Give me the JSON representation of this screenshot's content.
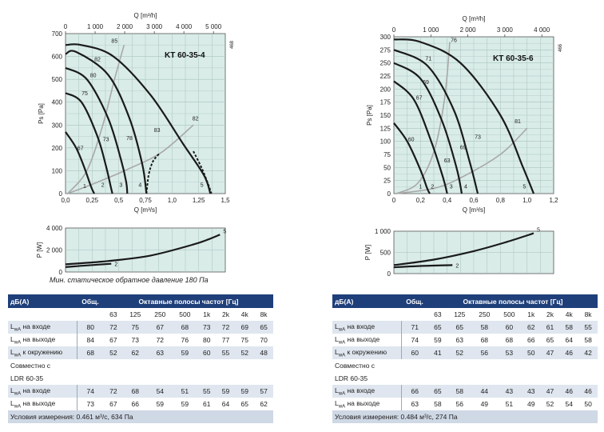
{
  "chart_data": [
    {
      "type": "line",
      "id": "left_main",
      "title": "KT 60-35-4",
      "side_label": "468",
      "xlabel": "Q [m³/s]",
      "x2label": "Q [m³/h]",
      "ylabel": "Ps [Pa]",
      "xlim": [
        0,
        1.5
      ],
      "ylim": [
        0,
        700
      ],
      "x2lim": [
        0,
        5400
      ],
      "xticks": [
        "0,0",
        "0,25",
        "0,5",
        "0,75",
        "1,0",
        "1,25",
        "1,5"
      ],
      "yticks": [
        "0",
        "100",
        "200",
        "300",
        "400",
        "500",
        "600",
        "700"
      ],
      "x2ticks": [
        "0",
        "1 000",
        "2 000",
        "3 000",
        "4 000",
        "5 000"
      ],
      "grid": true,
      "series": [
        {
          "name": "1",
          "points": [
            [
              0.0,
              270
            ],
            [
              0.1,
              200
            ],
            [
              0.18,
              110
            ],
            [
              0.24,
              30
            ],
            [
              0.27,
              0
            ]
          ]
        },
        {
          "name": "2",
          "points": [
            [
              0.0,
              440
            ],
            [
              0.15,
              400
            ],
            [
              0.3,
              250
            ],
            [
              0.38,
              120
            ],
            [
              0.42,
              40
            ],
            [
              0.44,
              0
            ]
          ]
        },
        {
          "name": "3",
          "points": [
            [
              0.0,
              550
            ],
            [
              0.2,
              500
            ],
            [
              0.4,
              330
            ],
            [
              0.52,
              150
            ],
            [
              0.57,
              50
            ],
            [
              0.58,
              0
            ]
          ]
        },
        {
          "name": "4",
          "points": [
            [
              0.0,
              610
            ],
            [
              0.1,
              620
            ],
            [
              0.4,
              520
            ],
            [
              0.6,
              330
            ],
            [
              0.72,
              130
            ],
            [
              0.76,
              0
            ]
          ]
        },
        {
          "name": "5",
          "points": [
            [
              0.0,
              650
            ],
            [
              0.15,
              650
            ],
            [
              0.45,
              600
            ],
            [
              0.8,
              430
            ],
            [
              1.1,
              220
            ],
            [
              1.3,
              80
            ],
            [
              1.36,
              0
            ]
          ]
        }
      ],
      "dashed_tails": [
        {
          "name": "4",
          "points": [
            [
              0.76,
              0
            ],
            [
              0.78,
              80
            ],
            [
              0.82,
              140
            ],
            [
              0.88,
              175
            ]
          ]
        },
        {
          "name": "5",
          "points": [
            [
              1.2,
              185
            ],
            [
              1.28,
              110
            ],
            [
              1.34,
              40
            ],
            [
              1.37,
              0
            ]
          ]
        }
      ],
      "efficiency_curves": [
        {
          "points": [
            [
              0.02,
              0
            ],
            [
              0.2,
              100
            ],
            [
              0.35,
              300
            ],
            [
              0.46,
              500
            ],
            [
              0.55,
              650
            ]
          ]
        },
        {
          "points": [
            [
              0.02,
              0
            ],
            [
              0.3,
              50
            ],
            [
              0.6,
              110
            ],
            [
              0.9,
              180
            ],
            [
              1.2,
              300
            ]
          ]
        }
      ],
      "labels": [
        {
          "text": "85",
          "x": 0.46,
          "y": 660
        },
        {
          "text": "82",
          "x": 0.3,
          "y": 580
        },
        {
          "text": "80",
          "x": 0.26,
          "y": 510
        },
        {
          "text": "75",
          "x": 0.18,
          "y": 430
        },
        {
          "text": "83",
          "x": 0.86,
          "y": 270
        },
        {
          "text": "82",
          "x": 1.22,
          "y": 320
        },
        {
          "text": "78",
          "x": 0.6,
          "y": 235
        },
        {
          "text": "73",
          "x": 0.38,
          "y": 230
        },
        {
          "text": "67",
          "x": 0.14,
          "y": 190
        },
        {
          "text": "1",
          "x": 0.18,
          "y": 25
        },
        {
          "text": "2",
          "x": 0.35,
          "y": 30
        },
        {
          "text": "3",
          "x": 0.52,
          "y": 30
        },
        {
          "text": "4",
          "x": 0.7,
          "y": 30
        },
        {
          "text": "5",
          "x": 1.28,
          "y": 30
        }
      ]
    },
    {
      "type": "line",
      "id": "left_power",
      "ylabel": "P [W]",
      "xlim": [
        0,
        1.5
      ],
      "ylim": [
        0,
        4000
      ],
      "yticks": [
        "0",
        "2 000",
        "4 000"
      ],
      "grid": true,
      "series": [
        {
          "name": "2",
          "points": [
            [
              0.0,
              450
            ],
            [
              0.2,
              600
            ],
            [
              0.43,
              750
            ]
          ]
        },
        {
          "name": "5",
          "points": [
            [
              0.0,
              700
            ],
            [
              0.4,
              1000
            ],
            [
              0.8,
              1500
            ],
            [
              1.2,
              2500
            ],
            [
              1.35,
              3000
            ],
            [
              1.45,
              3400
            ]
          ]
        }
      ]
    },
    {
      "type": "line",
      "id": "right_main",
      "title": "KT 60-35-6",
      "side_label": "466",
      "xlabel": "Q [m³/s]",
      "x2label": "Q [m³/h]",
      "ylabel": "Ps [Pa]",
      "xlim": [
        0,
        1.2
      ],
      "ylim": [
        0,
        300
      ],
      "x2lim": [
        0,
        4320
      ],
      "xticks": [
        "0",
        "0,2",
        "0,4",
        "0,6",
        "0,8",
        "1,0",
        "1,2"
      ],
      "yticks": [
        "0",
        "25",
        "50",
        "75",
        "100",
        "125",
        "150",
        "175",
        "200",
        "225",
        "250",
        "275",
        "300"
      ],
      "x2ticks": [
        "0",
        "1 000",
        "2 000",
        "3 000",
        "4 000"
      ],
      "grid": true,
      "series": [
        {
          "name": "1",
          "points": [
            [
              0.0,
              135
            ],
            [
              0.1,
              100
            ],
            [
              0.2,
              45
            ],
            [
              0.25,
              10
            ],
            [
              0.27,
              0
            ]
          ]
        },
        {
          "name": "2",
          "points": [
            [
              0.0,
              215
            ],
            [
              0.15,
              180
            ],
            [
              0.28,
              100
            ],
            [
              0.37,
              30
            ],
            [
              0.4,
              0
            ]
          ]
        },
        {
          "name": "3",
          "points": [
            [
              0.0,
              250
            ],
            [
              0.2,
              220
            ],
            [
              0.36,
              140
            ],
            [
              0.47,
              50
            ],
            [
              0.51,
              0
            ]
          ]
        },
        {
          "name": "4",
          "points": [
            [
              0.0,
              275
            ],
            [
              0.25,
              245
            ],
            [
              0.45,
              160
            ],
            [
              0.57,
              60
            ],
            [
              0.63,
              0
            ]
          ]
        },
        {
          "name": "5",
          "points": [
            [
              0.0,
              295
            ],
            [
              0.2,
              290
            ],
            [
              0.5,
              250
            ],
            [
              0.8,
              150
            ],
            [
              0.97,
              50
            ],
            [
              1.05,
              0
            ]
          ]
        }
      ],
      "efficiency_curves": [
        {
          "points": [
            [
              0.02,
              0
            ],
            [
              0.18,
              20
            ],
            [
              0.3,
              80
            ],
            [
              0.38,
              180
            ],
            [
              0.42,
              290
            ]
          ]
        },
        {
          "points": [
            [
              0.02,
              0
            ],
            [
              0.3,
              10
            ],
            [
              0.5,
              30
            ],
            [
              0.8,
              75
            ],
            [
              1.0,
              125
            ]
          ]
        }
      ],
      "labels": [
        {
          "text": "76",
          "x": 0.45,
          "y": 290
        },
        {
          "text": "71",
          "x": 0.26,
          "y": 255
        },
        {
          "text": "69",
          "x": 0.24,
          "y": 210
        },
        {
          "text": "67",
          "x": 0.19,
          "y": 180
        },
        {
          "text": "60",
          "x": 0.13,
          "y": 100
        },
        {
          "text": "63",
          "x": 0.4,
          "y": 60
        },
        {
          "text": "69",
          "x": 0.52,
          "y": 85
        },
        {
          "text": "73",
          "x": 0.63,
          "y": 105
        },
        {
          "text": "81",
          "x": 0.93,
          "y": 135
        },
        {
          "text": "1",
          "x": 0.2,
          "y": 10
        },
        {
          "text": "2",
          "x": 0.29,
          "y": 10
        },
        {
          "text": "3",
          "x": 0.43,
          "y": 10
        },
        {
          "text": "4",
          "x": 0.54,
          "y": 10
        },
        {
          "text": "5",
          "x": 0.98,
          "y": 10
        }
      ]
    },
    {
      "type": "line",
      "id": "right_power",
      "ylabel": "P [W]",
      "xlim": [
        0,
        1.2
      ],
      "ylim": [
        0,
        1000
      ],
      "yticks": [
        "0",
        "500",
        "1 000"
      ],
      "grid": true,
      "series": [
        {
          "name": "2",
          "points": [
            [
              0.0,
              150
            ],
            [
              0.2,
              180
            ],
            [
              0.44,
              200
            ]
          ]
        },
        {
          "name": "5",
          "points": [
            [
              0.0,
              200
            ],
            [
              0.3,
              330
            ],
            [
              0.6,
              530
            ],
            [
              0.85,
              750
            ],
            [
              1.05,
              950
            ]
          ]
        }
      ]
    }
  ],
  "note_left": "Мин. статическое обратное давление 180 Па",
  "tables": {
    "left": {
      "hdr_db": "дБ(А)",
      "hdr_total": "Общ.",
      "hdr_bands": "Октавные полосы частот [Гц]",
      "freqs": [
        "63",
        "125",
        "250",
        "500",
        "1k",
        "2k",
        "4k",
        "8k"
      ],
      "rows": [
        {
          "l": "L",
          "sub": "wA",
          "rest": " на входе",
          "total": "80",
          "vals": [
            "72",
            "75",
            "67",
            "68",
            "73",
            "72",
            "69",
            "65"
          ]
        },
        {
          "l": "L",
          "sub": "wA",
          "rest": " на выходе",
          "total": "84",
          "vals": [
            "67",
            "73",
            "72",
            "76",
            "80",
            "77",
            "75",
            "70"
          ]
        },
        {
          "l": "L",
          "sub": "wA",
          "rest": " к окружению",
          "total": "68",
          "vals": [
            "52",
            "62",
            "63",
            "59",
            "60",
            "55",
            "52",
            "48"
          ]
        }
      ],
      "combined1": "Совместно с",
      "combined2": "LDR 60-35",
      "rows2": [
        {
          "l": "L",
          "sub": "wA",
          "rest": " на входе",
          "total": "74",
          "vals": [
            "72",
            "68",
            "54",
            "51",
            "55",
            "59",
            "59",
            "57"
          ]
        },
        {
          "l": "L",
          "sub": "wA",
          "rest": " на выходе",
          "total": "73",
          "vals": [
            "67",
            "66",
            "59",
            "59",
            "61",
            "64",
            "65",
            "62"
          ]
        }
      ],
      "cond": "Условия измерения: 0.461 м³/с, 634 Па"
    },
    "right": {
      "hdr_db": "дБ(А)",
      "hdr_total": "Общ.",
      "hdr_bands": "Октавные полосы частот [Гц]",
      "freqs": [
        "63",
        "125",
        "250",
        "500",
        "1k",
        "2k",
        "4k",
        "8k"
      ],
      "rows": [
        {
          "l": "L",
          "sub": "wA",
          "rest": " на входе",
          "total": "71",
          "vals": [
            "65",
            "65",
            "58",
            "60",
            "62",
            "61",
            "58",
            "55"
          ]
        },
        {
          "l": "L",
          "sub": "wA",
          "rest": " на выходе",
          "total": "74",
          "vals": [
            "59",
            "63",
            "68",
            "68",
            "66",
            "65",
            "64",
            "58"
          ]
        },
        {
          "l": "L",
          "sub": "wA",
          "rest": " к окружению",
          "total": "60",
          "vals": [
            "41",
            "52",
            "56",
            "53",
            "50",
            "47",
            "46",
            "42"
          ]
        }
      ],
      "combined1": "Совместно с",
      "combined2": "LDR 60-35",
      "rows2": [
        {
          "l": "L",
          "sub": "wA",
          "rest": " на входе",
          "total": "66",
          "vals": [
            "65",
            "58",
            "44",
            "43",
            "43",
            "47",
            "46",
            "46"
          ]
        },
        {
          "l": "L",
          "sub": "wA",
          "rest": " на выходе",
          "total": "63",
          "vals": [
            "58",
            "56",
            "49",
            "51",
            "49",
            "52",
            "54",
            "50"
          ]
        }
      ],
      "cond": "Условия измерения: 0.484 м³/с, 274 Па"
    }
  },
  "colors": {
    "panel": "#d9ece8",
    "grid": "#a9c2bd",
    "curve": "#1a1a1a",
    "eff": "#a8a8a8",
    "header": "#1f3f7a",
    "shade": "#dfe6ef"
  }
}
